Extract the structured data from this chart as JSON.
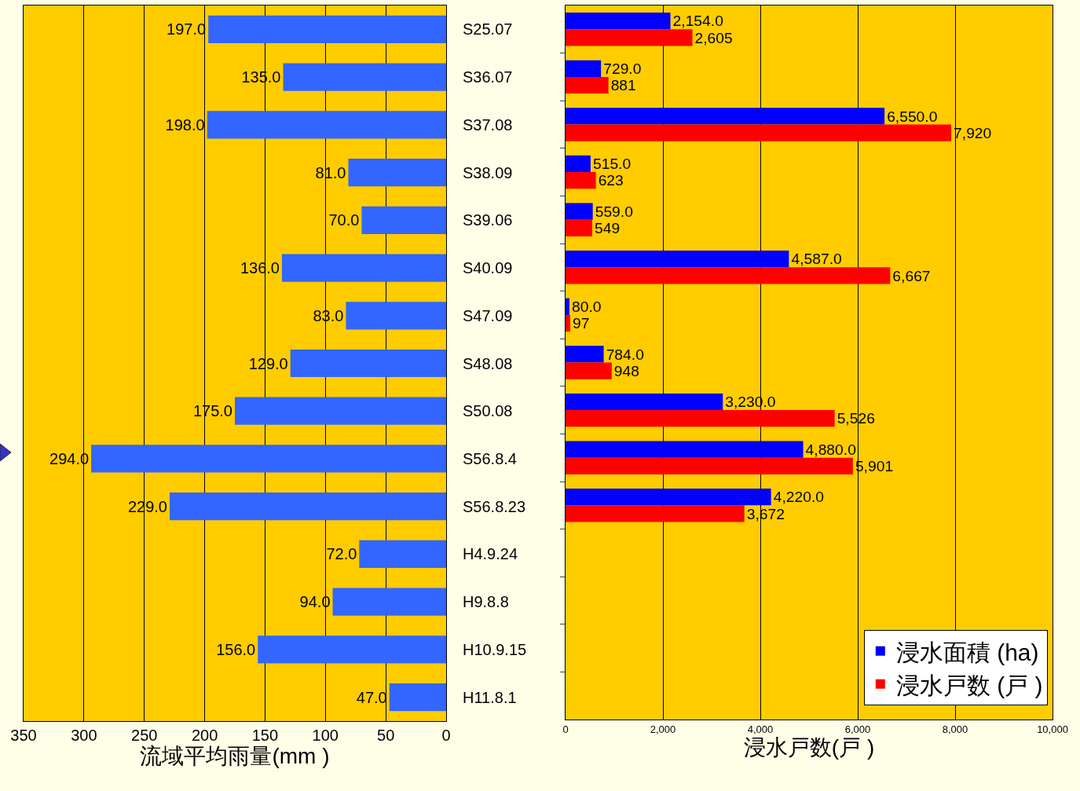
{
  "chart_data": [
    {
      "type": "bar",
      "orientation": "horizontal",
      "xlabel": "流域平均雨量(mm )",
      "categories": [
        "S25.07",
        "S36.07",
        "S37.08",
        "S38.09",
        "S39.06",
        "S40.09",
        "S47.09",
        "S48.08",
        "S50.08",
        "S56.8.4",
        "S56.8.23",
        "H4.9.24",
        "H9.8.8",
        "H10.9.15",
        "H11.8.1"
      ],
      "series": [
        {
          "color": "#3366ff",
          "values": [
            197,
            135,
            198,
            81,
            70,
            136,
            83,
            129,
            175,
            294,
            229,
            72,
            94,
            156,
            47
          ],
          "value_labels": [
            "197.0",
            "135.0",
            "198.0",
            "81.0",
            "70.0",
            "136.0",
            "83.0",
            "129.0",
            "175.0",
            "294.0",
            "229.0",
            "72.0",
            "94.0",
            "156.0",
            "47.0"
          ]
        }
      ],
      "xlim": [
        350,
        0
      ],
      "xticks": [
        350,
        300,
        250,
        200,
        150,
        100,
        50,
        0
      ],
      "grid": "x"
    },
    {
      "type": "bar",
      "orientation": "horizontal",
      "xlabel": "浸水戸数(戸 )",
      "tick_labels": "x",
      "categories": [
        null,
        null,
        null,
        null,
        null,
        null,
        null,
        null,
        null,
        null,
        null,
        null,
        null,
        null,
        null
      ],
      "series": [
        {
          "name": "浸水面積 (ha)",
          "color": "#0000ff",
          "values": [
            2154,
            729,
            6550,
            515,
            559,
            4587,
            80,
            784,
            3230,
            4880,
            4220,
            null,
            null,
            null,
            null
          ],
          "value_labels": [
            "2,154.0",
            "729.0",
            "6,550.0",
            "515.0",
            "559.0",
            "4,587.0",
            "80.0",
            "784.0",
            "3,230.0",
            "4,880.0",
            "4,220.0",
            null,
            null,
            null,
            null
          ]
        },
        {
          "name": "浸水戸数 (戸 )",
          "color": "#ff0000",
          "values": [
            2605,
            881,
            7920,
            623,
            549,
            6667,
            97,
            948,
            5526,
            5901,
            3672,
            null,
            null,
            null,
            null
          ],
          "value_labels": [
            "2,605",
            "881",
            "7,920",
            "623",
            "549",
            "6,667",
            "97",
            "948",
            "5,526",
            "5,901",
            "3,672",
            null,
            null,
            null,
            null
          ]
        }
      ],
      "xlim": [
        0,
        10000
      ],
      "xticks": [
        0,
        {
          "value": 2000,
          "label": "2,000"
        },
        {
          "value": 4000,
          "label": "4,000"
        },
        {
          "value": 6000,
          "label": "6,000"
        },
        {
          "value": 8000,
          "label": "8,000"
        },
        {
          "value": 10000,
          "label": "10,000"
        }
      ],
      "grid": "x",
      "legend": "bottom right"
    }
  ]
}
